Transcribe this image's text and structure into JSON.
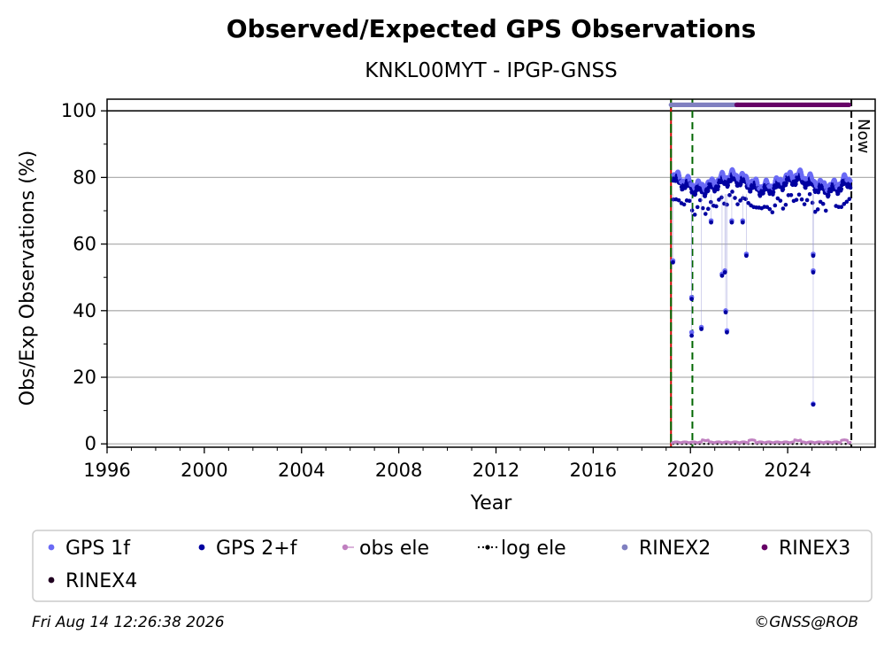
{
  "chart_data": {
    "type": "scatter",
    "title": "Observed/Expected GPS Observations",
    "subtitle": "KNKL00MYT - IPGP-GNSS",
    "xlabel": "Year",
    "ylabel": "Obs/Exp Observations (%)",
    "xlim": [
      1996,
      2027.6
    ],
    "ylim": [
      -1,
      103.5
    ],
    "xticks": [
      1996,
      2000,
      2004,
      2008,
      2012,
      2016,
      2020,
      2024
    ],
    "yticks": [
      0,
      20,
      40,
      60,
      80,
      100
    ],
    "grid": "horizontal",
    "legend_position": "bottom",
    "annotations": {
      "now_label": "Now",
      "now_x": 2026.62,
      "red_line_x": 2019.2,
      "green_lines_x": [
        2019.2,
        2020.08
      ],
      "reference_line_y": 100
    },
    "series": [
      {
        "name": "GPS 1f",
        "color": "#6a6af5",
        "marker": "dot",
        "points": [
          [
            2019.28,
            55.0
          ],
          [
            2020.05,
            33.5
          ],
          [
            2020.05,
            44.0
          ],
          [
            2020.45,
            35.0
          ],
          [
            2020.85,
            67.0
          ],
          [
            2021.3,
            51.0
          ],
          [
            2021.42,
            52.0
          ],
          [
            2021.45,
            40.0
          ],
          [
            2021.5,
            34.0
          ],
          [
            2021.7,
            67.0
          ],
          [
            2022.15,
            67.0
          ],
          [
            2022.3,
            57.0
          ],
          [
            2025.05,
            57.0
          ],
          [
            2025.05,
            52.0
          ],
          [
            2025.05,
            12.0
          ]
        ]
      },
      {
        "name": "GPS 2+f",
        "color": "#0000a0",
        "marker": "dot",
        "points": [
          [
            2019.28,
            54.5
          ],
          [
            2020.05,
            32.5
          ],
          [
            2020.05,
            43.5
          ],
          [
            2020.45,
            34.5
          ],
          [
            2020.85,
            66.5
          ],
          [
            2021.3,
            50.5
          ],
          [
            2021.42,
            51.5
          ],
          [
            2021.45,
            39.5
          ],
          [
            2021.5,
            33.5
          ],
          [
            2021.7,
            66.5
          ],
          [
            2022.15,
            66.5
          ],
          [
            2022.3,
            56.5
          ],
          [
            2025.05,
            56.5
          ],
          [
            2025.05,
            51.5
          ],
          [
            2025.05,
            11.8
          ]
        ]
      },
      {
        "name": "obs ele",
        "color": "#c080c0",
        "marker": "line-dot",
        "y_level": 0.3
      },
      {
        "name": "log ele",
        "color": "#000000",
        "marker": "dotted-line",
        "y_level": 0
      },
      {
        "name": "RINEX2",
        "color": "#8080c0",
        "marker": "dot",
        "start": 2019.2,
        "end": 2022.0,
        "y_level": 101.8
      },
      {
        "name": "RINEX3",
        "color": "#660066",
        "marker": "dot",
        "start": 2021.9,
        "end": 2026.55,
        "y_level": 101.8
      },
      {
        "name": "RINEX4",
        "color": "#200020",
        "marker": "dot"
      }
    ]
  },
  "footer": {
    "timestamp": "Fri Aug 14 12:26:38 2026",
    "copyright": "©GNSS@ROB"
  }
}
